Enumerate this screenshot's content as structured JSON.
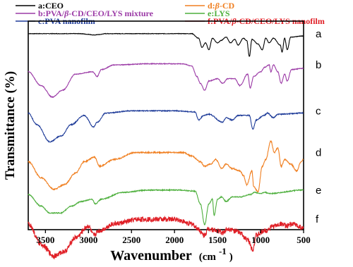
{
  "chart_data": {
    "type": "line",
    "title": "",
    "xlabel": "Wavenumber",
    "xlabel_unit_prefix": "(cm",
    "xlabel_unit_exp": "-1",
    "xlabel_unit_suffix": ")",
    "ylabel": "Transmittance (%)",
    "xlim": [
      3700,
      500
    ],
    "x_reversed": true,
    "xticks": [
      3500,
      3000,
      2500,
      2000,
      1500,
      1000,
      500
    ],
    "y_ticks_shown": false,
    "grid": false,
    "legend_position": "top",
    "legend": [
      {
        "label_pre": "a:CEO",
        "label_italic": "",
        "label_post": "",
        "color": "#000000"
      },
      {
        "label_pre": "b:PVA/",
        "label_italic": "β",
        "label_post": "-CD/CEO/LYS mixture",
        "color": "#9b3aa6"
      },
      {
        "label_pre": "c:PVA nanofilm",
        "label_italic": "",
        "label_post": "",
        "color": "#1f3c99"
      },
      {
        "label_pre": "d:",
        "label_italic": "β",
        "label_post": "-CD",
        "color": "#f07f20"
      },
      {
        "label_pre": "e:LYS",
        "label_italic": "",
        "label_post": "",
        "color": "#4daf3c"
      },
      {
        "label_pre": "f:PVA/",
        "label_italic": "β",
        "label_post": "-CD/CEO/LYS nanofilm",
        "color": "#e01f26"
      }
    ],
    "series": [
      {
        "name": "a",
        "label": "a",
        "color": "#000000",
        "offset": 6,
        "noise": 0.2,
        "points": [
          [
            3700,
            0
          ],
          [
            3100,
            0
          ],
          [
            3000,
            -0.6
          ],
          [
            2940,
            -1.2
          ],
          [
            2880,
            -0.8
          ],
          [
            2800,
            0
          ],
          [
            1800,
            0
          ],
          [
            1720,
            -4
          ],
          [
            1680,
            -12
          ],
          [
            1640,
            -8
          ],
          [
            1600,
            -14
          ],
          [
            1560,
            -4
          ],
          [
            1500,
            -8
          ],
          [
            1460,
            -6
          ],
          [
            1400,
            -3
          ],
          [
            1350,
            -8
          ],
          [
            1300,
            -5
          ],
          [
            1260,
            -10
          ],
          [
            1200,
            -4
          ],
          [
            1160,
            -6
          ],
          [
            1130,
            -20
          ],
          [
            1100,
            -5
          ],
          [
            1030,
            -9
          ],
          [
            980,
            -14
          ],
          [
            940,
            -4
          ],
          [
            900,
            -8
          ],
          [
            850,
            -4
          ],
          [
            770,
            -10
          ],
          [
            750,
            -16
          ],
          [
            720,
            -4
          ],
          [
            690,
            -14
          ],
          [
            650,
            -3
          ],
          [
            500,
            -2
          ]
        ]
      },
      {
        "name": "b",
        "label": "b",
        "color": "#9b3aa6",
        "offset": 21,
        "noise": 0.3,
        "points": [
          [
            3700,
            -6
          ],
          [
            3550,
            -18
          ],
          [
            3420,
            -28
          ],
          [
            3300,
            -22
          ],
          [
            3150,
            -8
          ],
          [
            2950,
            -6
          ],
          [
            2900,
            -10
          ],
          [
            2850,
            -4
          ],
          [
            2700,
            0
          ],
          [
            2300,
            1
          ],
          [
            1900,
            1
          ],
          [
            1800,
            -1
          ],
          [
            1740,
            -10
          ],
          [
            1700,
            -16
          ],
          [
            1650,
            -22
          ],
          [
            1600,
            -14
          ],
          [
            1500,
            -12
          ],
          [
            1440,
            -16
          ],
          [
            1380,
            -12
          ],
          [
            1300,
            -12
          ],
          [
            1240,
            -18
          ],
          [
            1150,
            -8
          ],
          [
            1120,
            -20
          ],
          [
            1080,
            -10
          ],
          [
            1000,
            -6
          ],
          [
            950,
            -2
          ],
          [
            900,
            0
          ],
          [
            880,
            -6
          ],
          [
            850,
            0
          ],
          [
            800,
            -6
          ],
          [
            760,
            -16
          ],
          [
            720,
            -8
          ],
          [
            690,
            -14
          ],
          [
            640,
            -4
          ],
          [
            500,
            -3
          ]
        ]
      },
      {
        "name": "c",
        "label": "c",
        "color": "#1f3c99",
        "offset": 43,
        "noise": 0.4,
        "points": [
          [
            3700,
            -2
          ],
          [
            3600,
            -12
          ],
          [
            3450,
            -27
          ],
          [
            3320,
            -22
          ],
          [
            3200,
            -12
          ],
          [
            3050,
            -4
          ],
          [
            2940,
            -14
          ],
          [
            2900,
            -10
          ],
          [
            2800,
            -2
          ],
          [
            2500,
            0
          ],
          [
            2000,
            0
          ],
          [
            1760,
            -1
          ],
          [
            1720,
            -8
          ],
          [
            1660,
            -4
          ],
          [
            1600,
            -3
          ],
          [
            1440,
            -10
          ],
          [
            1400,
            -6
          ],
          [
            1330,
            -8
          ],
          [
            1260,
            -4
          ],
          [
            1130,
            -4
          ],
          [
            1090,
            -16
          ],
          [
            1050,
            -8
          ],
          [
            960,
            -4
          ],
          [
            920,
            -2
          ],
          [
            850,
            -6
          ],
          [
            800,
            -3
          ],
          [
            500,
            -2
          ]
        ]
      },
      {
        "name": "d",
        "label": "d",
        "color": "#f07f20",
        "offset": 63,
        "noise": 0.5,
        "points": [
          [
            3700,
            -8
          ],
          [
            3550,
            -22
          ],
          [
            3400,
            -32
          ],
          [
            3280,
            -28
          ],
          [
            3150,
            -18
          ],
          [
            3050,
            -8
          ],
          [
            2930,
            -4
          ],
          [
            2870,
            -12
          ],
          [
            2700,
            -6
          ],
          [
            2450,
            0
          ],
          [
            2100,
            0
          ],
          [
            1900,
            0
          ],
          [
            1800,
            -3
          ],
          [
            1700,
            -8
          ],
          [
            1650,
            -12
          ],
          [
            1580,
            -10
          ],
          [
            1520,
            -6
          ],
          [
            1450,
            -14
          ],
          [
            1400,
            -10
          ],
          [
            1330,
            -14
          ],
          [
            1240,
            -16
          ],
          [
            1200,
            -20
          ],
          [
            1160,
            -28
          ],
          [
            1100,
            -16
          ],
          [
            1080,
            -30
          ],
          [
            1030,
            -34
          ],
          [
            980,
            -12
          ],
          [
            940,
            -6
          ],
          [
            880,
            10
          ],
          [
            840,
            0
          ],
          [
            800,
            4
          ],
          [
            760,
            -12
          ],
          [
            720,
            -6
          ],
          [
            650,
            -10
          ],
          [
            580,
            -16
          ],
          [
            530,
            -8
          ],
          [
            500,
            -6
          ]
        ]
      },
      {
        "name": "e",
        "label": "e",
        "color": "#4daf3c",
        "offset": 81,
        "noise": 0.4,
        "points": [
          [
            3700,
            -4
          ],
          [
            3550,
            -14
          ],
          [
            3450,
            -20
          ],
          [
            3320,
            -20
          ],
          [
            3200,
            -14
          ],
          [
            3080,
            -10
          ],
          [
            2960,
            -8
          ],
          [
            2920,
            -12
          ],
          [
            2850,
            -8
          ],
          [
            2600,
            -2
          ],
          [
            2300,
            0
          ],
          [
            1950,
            0
          ],
          [
            1760,
            -1
          ],
          [
            1700,
            -12
          ],
          [
            1650,
            -30
          ],
          [
            1600,
            -12
          ],
          [
            1560,
            -8
          ],
          [
            1540,
            -22
          ],
          [
            1500,
            -8
          ],
          [
            1450,
            -6
          ],
          [
            1400,
            -10
          ],
          [
            1330,
            -6
          ],
          [
            1240,
            -6
          ],
          [
            1120,
            -4
          ],
          [
            1070,
            -2
          ],
          [
            1000,
            -3
          ],
          [
            950,
            -2
          ],
          [
            900,
            -3
          ],
          [
            500,
            0
          ]
        ]
      },
      {
        "name": "f",
        "label": "f",
        "color": "#e01f26",
        "offset": 95,
        "noise": 2.2,
        "points": [
          [
            3700,
            -4
          ],
          [
            3550,
            -22
          ],
          [
            3400,
            -32
          ],
          [
            3280,
            -28
          ],
          [
            3150,
            -16
          ],
          [
            3000,
            -6
          ],
          [
            2940,
            -14
          ],
          [
            2880,
            -10
          ],
          [
            2700,
            -4
          ],
          [
            2400,
            0
          ],
          [
            2000,
            0
          ],
          [
            1800,
            -4
          ],
          [
            1730,
            -8
          ],
          [
            1660,
            -14
          ],
          [
            1600,
            -8
          ],
          [
            1500,
            -10
          ],
          [
            1440,
            -12
          ],
          [
            1380,
            -8
          ],
          [
            1300,
            -10
          ],
          [
            1240,
            -12
          ],
          [
            1150,
            -18
          ],
          [
            1090,
            -26
          ],
          [
            1050,
            -14
          ],
          [
            950,
            -10
          ],
          [
            850,
            -6
          ],
          [
            750,
            -4
          ],
          [
            700,
            -6
          ],
          [
            620,
            -4
          ],
          [
            560,
            -6
          ],
          [
            500,
            -8
          ]
        ]
      }
    ]
  }
}
